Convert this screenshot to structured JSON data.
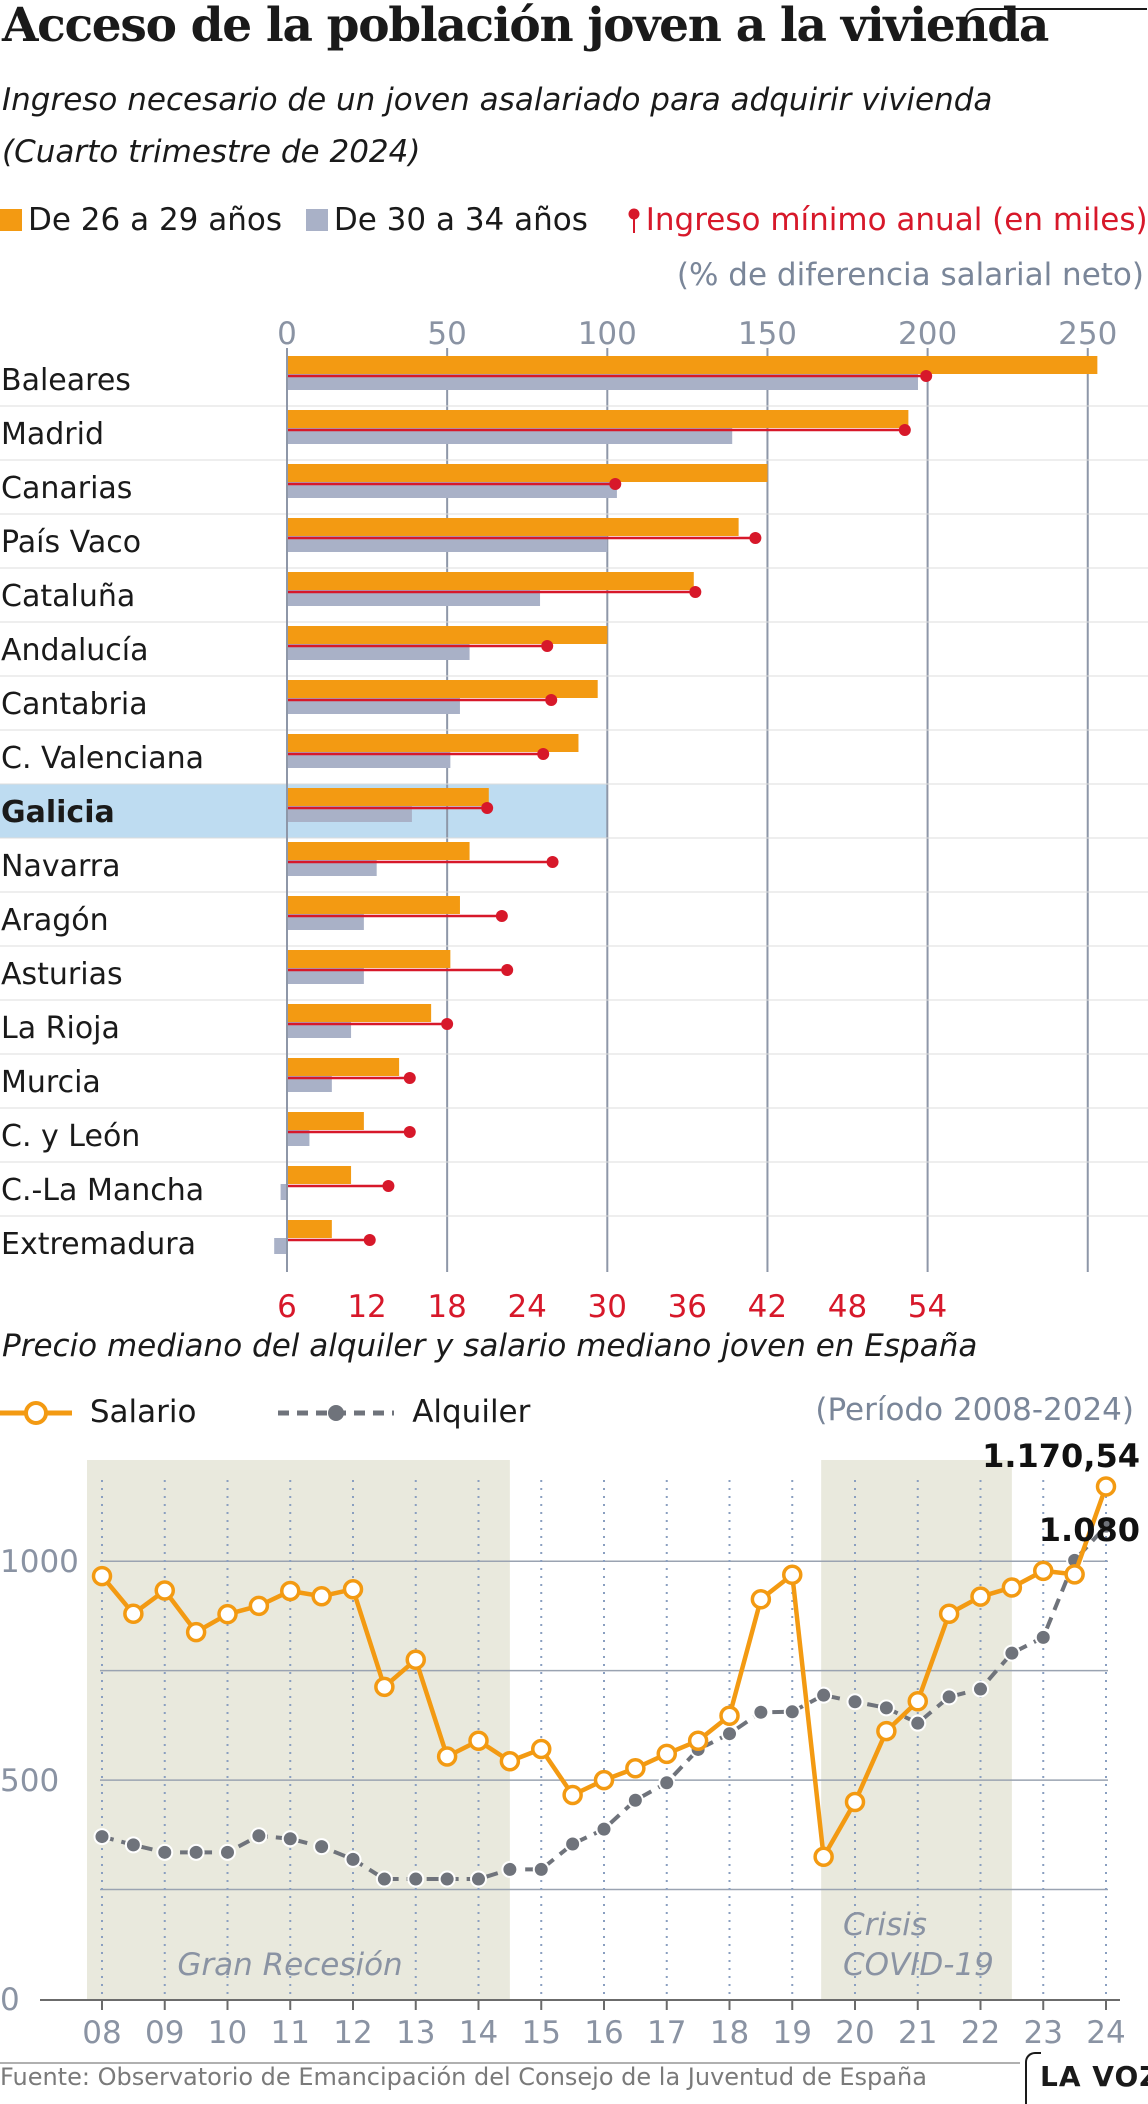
{
  "title": "Acceso de la población joven a la vivienda",
  "subtitle_line1": "Ingreso necesario de un  joven asalariado para adquirir vivienda",
  "subtitle_line2": "(Cuarto trimestre de 2024)",
  "legend": {
    "series1": "De 26 a 29 años",
    "series2": "De 30 a 34 años",
    "series3": "Ingreso mínimo anual (en miles)"
  },
  "axis_note": "(% de diferencia salarial neto)",
  "colors": {
    "orange": "#f39a12",
    "gray": "#a9b1c7",
    "red": "#d7182a",
    "highlight": "#bedcf1",
    "shade": "#e9e9dd"
  },
  "chart_data": [
    {
      "type": "bar",
      "title": "Ingreso necesario de un  joven asalariado para adquirir vivienda",
      "categories": [
        "Baleares",
        "Madrid",
        "Canarias",
        "País Vaco",
        "Cataluña",
        "Andalucía",
        "Cantabria",
        "C. Valenciana",
        "Galicia",
        "Navarra",
        "Aragón",
        "Asturias",
        "La Rioja",
        "Murcia",
        "C. y León",
        "C.-La Mancha",
        "Extremadura"
      ],
      "highlight": "Galicia",
      "top_axis": {
        "ticks": [
          0,
          50,
          100,
          150,
          200,
          250
        ],
        "range": [
          0,
          250
        ],
        "note": "(% de diferencia salarial neto)"
      },
      "bottom_axis": {
        "ticks": [
          6,
          12,
          18,
          24,
          30,
          36,
          42,
          48,
          54
        ],
        "range": [
          6,
          54
        ]
      },
      "series": [
        {
          "name": "De 26 a 29 años",
          "values": [
            253,
            194,
            150,
            141,
            127,
            100,
            97,
            91,
            63,
            57,
            54,
            51,
            45,
            35,
            24,
            20,
            14
          ]
        },
        {
          "name": "De 30 a 34 años",
          "values": [
            197,
            139,
            103,
            100,
            79,
            57,
            54,
            51,
            39,
            28,
            24,
            24,
            20,
            14,
            7,
            -2,
            -4
          ]
        },
        {
          "name": "Ingreso mínimo anual (en miles)",
          "values": [
            53.9,
            52.3,
            30.6,
            41.1,
            36.6,
            25.5,
            25.8,
            25.2,
            21.0,
            25.9,
            22.1,
            22.5,
            18.0,
            15.2,
            15.2,
            13.6,
            12.2
          ]
        }
      ]
    },
    {
      "type": "line",
      "title": "Precio mediano del alquiler y salario mediano joven en España",
      "period": "(Período 2008-2024)",
      "x_tick_labels": [
        "08",
        "09",
        "10",
        "11",
        "12",
        "13",
        "14",
        "15",
        "16",
        "17",
        "18",
        "19",
        "20",
        "21",
        "22",
        "23",
        "24"
      ],
      "x": [
        2008,
        2008.5,
        2009,
        2009.5,
        2010,
        2010.5,
        2011,
        2011.5,
        2012,
        2012.5,
        2013,
        2013.5,
        2014,
        2014.5,
        2015,
        2015.5,
        2016,
        2016.5,
        2017,
        2017.5,
        2018,
        2018.5,
        2019,
        2019.5,
        2020,
        2020.5,
        2021,
        2021.5,
        2022,
        2022.5,
        2023,
        2023.5,
        2024
      ],
      "y_ticks": [
        0,
        500,
        1000
      ],
      "ylim": [
        0,
        1300
      ],
      "xlim": [
        2008,
        2024
      ],
      "series": [
        {
          "name": "Salario",
          "style": "orange-open-circles",
          "values": [
            966,
            880,
            933,
            838,
            879,
            898,
            932,
            920,
            936,
            713,
            775,
            554,
            590,
            543,
            571,
            466,
            500,
            527,
            560,
            590,
            647,
            913,
            969,
            325,
            450,
            612,
            680,
            880,
            919,
            940,
            978,
            970,
            1170.54
          ]
        },
        {
          "name": "Alquiler",
          "style": "gray-dashed-dots",
          "values": [
            371,
            352,
            335,
            335,
            335,
            373,
            366,
            348,
            319,
            274,
            274,
            274,
            274,
            296,
            296,
            354,
            388,
            454,
            494,
            570,
            606,
            655,
            656,
            694,
            679,
            665,
            630,
            690,
            708,
            790,
            826,
            1002,
            1080
          ]
        }
      ],
      "annotations": {
        "last_salario": "1.170,54",
        "last_alquiler": "1.080",
        "gran_recesion": "Gran Recesión",
        "covid_line1": "Crisis",
        "covid_line2": "COVID-19"
      },
      "shaded_periods": [
        [
          2008,
          2014.5
        ],
        [
          2019.7,
          2022.5
        ]
      ]
    }
  ],
  "section2_title": "Precio mediano del alquiler y salario mediano joven en España",
  "legend2": {
    "salario": "Salario",
    "alquiler": "Alquiler"
  },
  "period": "(Período 2008-2024)",
  "footer": "Fuente: Observatorio de Emancipación del Consejo de la Juventud de España",
  "brand": "LA VOZ"
}
